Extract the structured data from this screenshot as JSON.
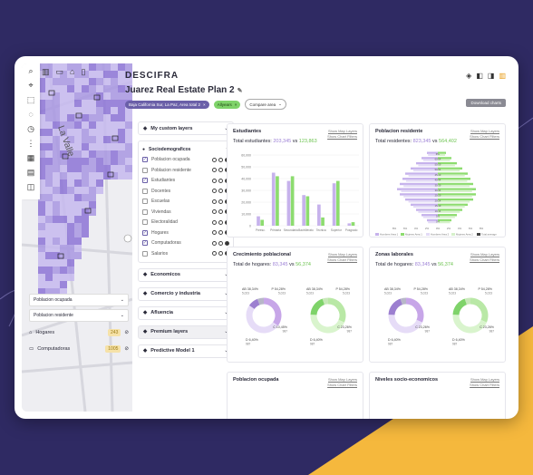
{
  "app": {
    "brand": "DESCIFRA",
    "title": "Juarez Real Estate Plan 2"
  },
  "filters": {
    "location": "Baja California Sur, La Paz, Area total 2",
    "poi": "Allyears",
    "compare": "Compare area"
  },
  "header": {
    "download": "Download charts"
  },
  "map": {
    "layers": [
      "Poblacion ocupada",
      "Poblacion residente"
    ],
    "legend": [
      {
        "label": "Hogares",
        "value": "243"
      },
      {
        "label": "Computadoras",
        "value": "1005"
      }
    ]
  },
  "sidebar": {
    "custom": "My custom layers",
    "socio": "Sociodemograficos",
    "rows": [
      {
        "label": "Poblacion ocupada",
        "checked": true
      },
      {
        "label": "Poblacion residente",
        "checked": false
      },
      {
        "label": "Estudiantes",
        "checked": true
      },
      {
        "label": "Docentes",
        "checked": false
      },
      {
        "label": "Escuelas",
        "checked": false
      },
      {
        "label": "Viviendas",
        "checked": false
      },
      {
        "label": "Electoralidad",
        "checked": false
      },
      {
        "label": "Hogares",
        "checked": true
      },
      {
        "label": "Computadoras",
        "checked": true
      },
      {
        "label": "Salarios",
        "checked": false
      }
    ],
    "groups": [
      "Economicos",
      "Comercio y industria",
      "Afluencia",
      "Premium layers",
      "Predictive Model 1"
    ]
  },
  "colors": {
    "purple": "#c6b2ec",
    "green": "#8ddc6f",
    "accent": "#6a5fa8"
  },
  "panels": {
    "links": [
      "Show Map Layers",
      "Show Chart Filters"
    ],
    "estudiantes": {
      "title": "Estudiantes",
      "total_prefix": "Total estudiantes:",
      "a": "203,345",
      "b": "123,863"
    },
    "residente": {
      "title": "Poblacion residente",
      "total_prefix": "Total residentes:",
      "a": "823,345",
      "b": "564,402"
    },
    "crecimiento": {
      "title": "Crecimiento poblacional",
      "total_prefix": "Total de hogares:",
      "a": "83,345",
      "b": "56,374"
    },
    "laborales": {
      "title": "Zonas laborales",
      "total_prefix": "Total de hogares:",
      "a": "83,345",
      "b": "56,374"
    },
    "ocupada": {
      "title": "Poblacion ocupada"
    },
    "niveles": {
      "title": "Niveles socio-economicos"
    },
    "vs": "vs"
  },
  "chart_data": [
    {
      "type": "bar",
      "title": "Estudiantes",
      "categories": [
        "Preesc.",
        "Primaria",
        "Secundaria",
        "Bachillerato",
        "Tecnica",
        "Superior",
        "Posgrado"
      ],
      "ylim": [
        0,
        60000
      ],
      "yticks": [
        "0",
        "10,000",
        "20,000",
        "30,000",
        "40,000",
        "50,000",
        "60,000"
      ],
      "series": [
        {
          "values": [
            8000,
            45000,
            38000,
            26000,
            18000,
            36000,
            2000
          ]
        },
        {
          "values": [
            5000,
            42000,
            42000,
            25000,
            7000,
            38000,
            3000
          ]
        }
      ]
    },
    {
      "type": "bar",
      "title": "Poblacion residente",
      "categories": [
        "0-4",
        "5-9",
        "10-14",
        "15-19",
        "20-24",
        "25-29",
        "30-34",
        "35-39",
        "40-44",
        "45-49",
        "50-54",
        "55-59",
        "60-64",
        "65+"
      ],
      "xticks": [
        "8%",
        "6%",
        "4%",
        "2%",
        "0%",
        "2%",
        "4%",
        "6%",
        "8%"
      ],
      "legend": [
        "Hombres Area 1",
        "Mujeres Area 1",
        "Hombres Area 2",
        "Mujeres Area 2",
        "Total average"
      ],
      "series": [
        {
          "values": [
            2,
            3,
            4,
            5,
            6,
            7,
            7.5,
            7,
            6.5,
            6,
            5,
            4,
            3,
            2
          ]
        },
        {
          "values": [
            2.5,
            3.5,
            4.5,
            5.5,
            6.5,
            7,
            7,
            6.5,
            6,
            5.5,
            4.5,
            3.5,
            2.5,
            1.5
          ]
        }
      ]
    },
    {
      "type": "pie",
      "title": "Crecimiento poblacional",
      "series": [
        {
          "labels": [
            "AB 38,34%",
            "P 54,28%",
            "C 10,45%",
            "D 6,40%"
          ],
          "values": [
            38.34,
            54.28,
            10.45,
            6.4
          ],
          "subs": [
            "5,023",
            "5,023",
            "987",
            "987"
          ]
        },
        {
          "labels": [
            "AB 38,34%",
            "P 54,28%",
            "C 23,26%",
            "D 6,40%"
          ],
          "values": [
            38.34,
            54.28,
            23.26,
            6.4
          ],
          "subs": [
            "5,023",
            "5,023",
            "987",
            "987"
          ]
        }
      ]
    },
    {
      "type": "pie",
      "title": "Zonas laborales",
      "series": [
        {
          "labels": [
            "AB 38,34%",
            "P 54,28%",
            "C 23,26%",
            "D 6,40%"
          ],
          "values": [
            38.34,
            54.28,
            23.26,
            6.4
          ],
          "subs": [
            "5,023",
            "5,023",
            "987",
            "987"
          ]
        },
        {
          "labels": [
            "AB 38,34%",
            "P 54,28%",
            "C 23,26%",
            "D 6,40%"
          ],
          "values": [
            38.34,
            54.28,
            23.26,
            6.4
          ],
          "subs": [
            "5,023",
            "5,023",
            "987",
            "987"
          ]
        }
      ]
    }
  ]
}
